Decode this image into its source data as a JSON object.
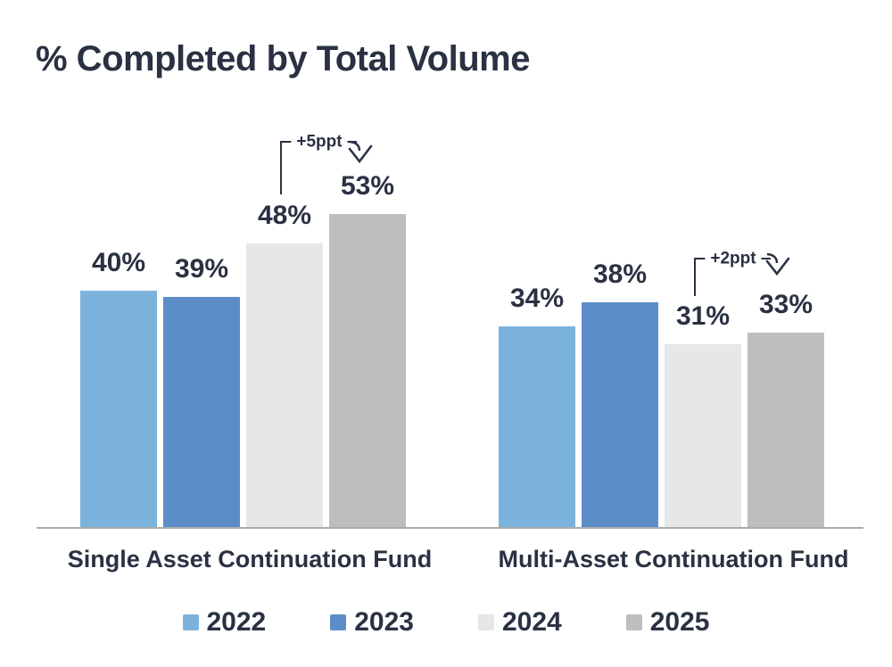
{
  "title": "% Completed by Total Volume",
  "chart_data": {
    "type": "bar",
    "title": "% Completed by Total Volume",
    "categories": [
      "Single Asset Continuation Fund",
      "Multi-Asset Continuation Fund"
    ],
    "series": [
      {
        "name": "2022",
        "color": "#7cb3dc",
        "values": [
          40,
          34
        ]
      },
      {
        "name": "2023",
        "color": "#5d8dc8",
        "values": [
          39,
          38
        ]
      },
      {
        "name": "2024",
        "color": "#e5e7e9",
        "values": [
          48,
          31
        ]
      },
      {
        "name": "2025",
        "color": "#bdbebf",
        "values": [
          53,
          33
        ]
      }
    ],
    "value_suffix": "%",
    "ylim": [
      0,
      60
    ],
    "grid": false,
    "legend_position": "bottom",
    "annotations": [
      {
        "label": "+5ppt",
        "group": "Single Asset Continuation Fund",
        "from": "2024",
        "to": "2025"
      },
      {
        "label": "+2ppt",
        "group": "Multi-Asset Continuation Fund",
        "from": "2024",
        "to": "2025"
      }
    ]
  },
  "colors": {
    "text": "#2a3142",
    "axis": "#aaacae",
    "background": "#ffffff"
  }
}
